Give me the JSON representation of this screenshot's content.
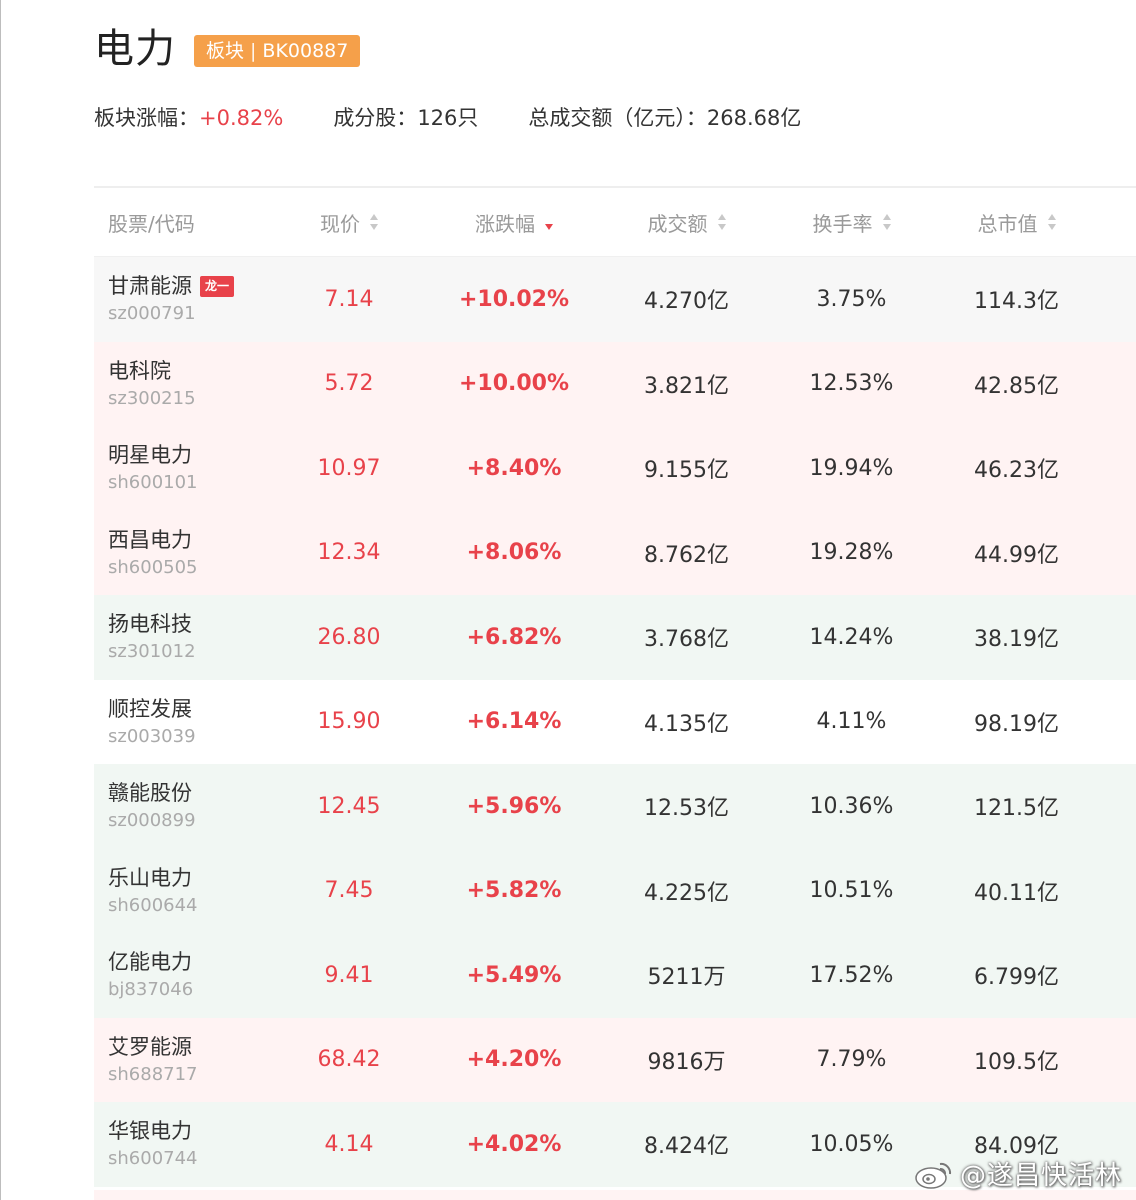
{
  "header": {
    "title": "电力",
    "badge_label": "板块",
    "badge_sep": "|",
    "badge_code": "BK00887"
  },
  "summary": {
    "change_label": "板块涨幅：",
    "change_value": "+0.82%",
    "constituents_label": "成分股：",
    "constituents_value": "126只",
    "turnover_label": "总成交额（亿元）：",
    "turnover_value": "268.68亿"
  },
  "table": {
    "columns": {
      "name": "股票/代码",
      "price": "现价",
      "change": "涨跌幅",
      "amount": "成交额",
      "turnover": "换手率",
      "market_cap": "总市值"
    },
    "sort_active_column": "change",
    "sort_direction": "desc",
    "rows": [
      {
        "name": "甘肃能源",
        "code": "sz000791",
        "tag": "龙一",
        "price": "7.14",
        "change": "+10.02%",
        "amount": "4.270亿",
        "turnover": "3.75%",
        "market_cap": "114.3亿",
        "bg": "gray"
      },
      {
        "name": "电科院",
        "code": "sz300215",
        "tag": "",
        "price": "5.72",
        "change": "+10.00%",
        "amount": "3.821亿",
        "turnover": "12.53%",
        "market_cap": "42.85亿",
        "bg": "red"
      },
      {
        "name": "明星电力",
        "code": "sh600101",
        "tag": "",
        "price": "10.97",
        "change": "+8.40%",
        "amount": "9.155亿",
        "turnover": "19.94%",
        "market_cap": "46.23亿",
        "bg": "red"
      },
      {
        "name": "西昌电力",
        "code": "sh600505",
        "tag": "",
        "price": "12.34",
        "change": "+8.06%",
        "amount": "8.762亿",
        "turnover": "19.28%",
        "market_cap": "44.99亿",
        "bg": "red"
      },
      {
        "name": "扬电科技",
        "code": "sz301012",
        "tag": "",
        "price": "26.80",
        "change": "+6.82%",
        "amount": "3.768亿",
        "turnover": "14.24%",
        "market_cap": "38.19亿",
        "bg": "green"
      },
      {
        "name": "顺控发展",
        "code": "sz003039",
        "tag": "",
        "price": "15.90",
        "change": "+6.14%",
        "amount": "4.135亿",
        "turnover": "4.11%",
        "market_cap": "98.19亿",
        "bg": "white"
      },
      {
        "name": "赣能股份",
        "code": "sz000899",
        "tag": "",
        "price": "12.45",
        "change": "+5.96%",
        "amount": "12.53亿",
        "turnover": "10.36%",
        "market_cap": "121.5亿",
        "bg": "green"
      },
      {
        "name": "乐山电力",
        "code": "sh600644",
        "tag": "",
        "price": "7.45",
        "change": "+5.82%",
        "amount": "4.225亿",
        "turnover": "10.51%",
        "market_cap": "40.11亿",
        "bg": "green"
      },
      {
        "name": "亿能电力",
        "code": "bj837046",
        "tag": "",
        "price": "9.41",
        "change": "+5.49%",
        "amount": "5211万",
        "turnover": "17.52%",
        "market_cap": "6.799亿",
        "bg": "green"
      },
      {
        "name": "艾罗能源",
        "code": "sh688717",
        "tag": "",
        "price": "68.42",
        "change": "+4.20%",
        "amount": "9816万",
        "turnover": "7.79%",
        "market_cap": "109.5亿",
        "bg": "red"
      },
      {
        "name": "华银电力",
        "code": "sh600744",
        "tag": "",
        "price": "4.14",
        "change": "+4.02%",
        "amount": "8.424亿",
        "turnover": "10.05%",
        "market_cap": "84.09亿",
        "bg": "green"
      }
    ]
  },
  "watermark": {
    "icon": "weibo-icon",
    "text": "@遂昌快活林"
  },
  "colors": {
    "up": "#e8424a",
    "badge": "#f5a04a",
    "row_red": "#fff3f3",
    "row_green": "#f1f7f3"
  }
}
